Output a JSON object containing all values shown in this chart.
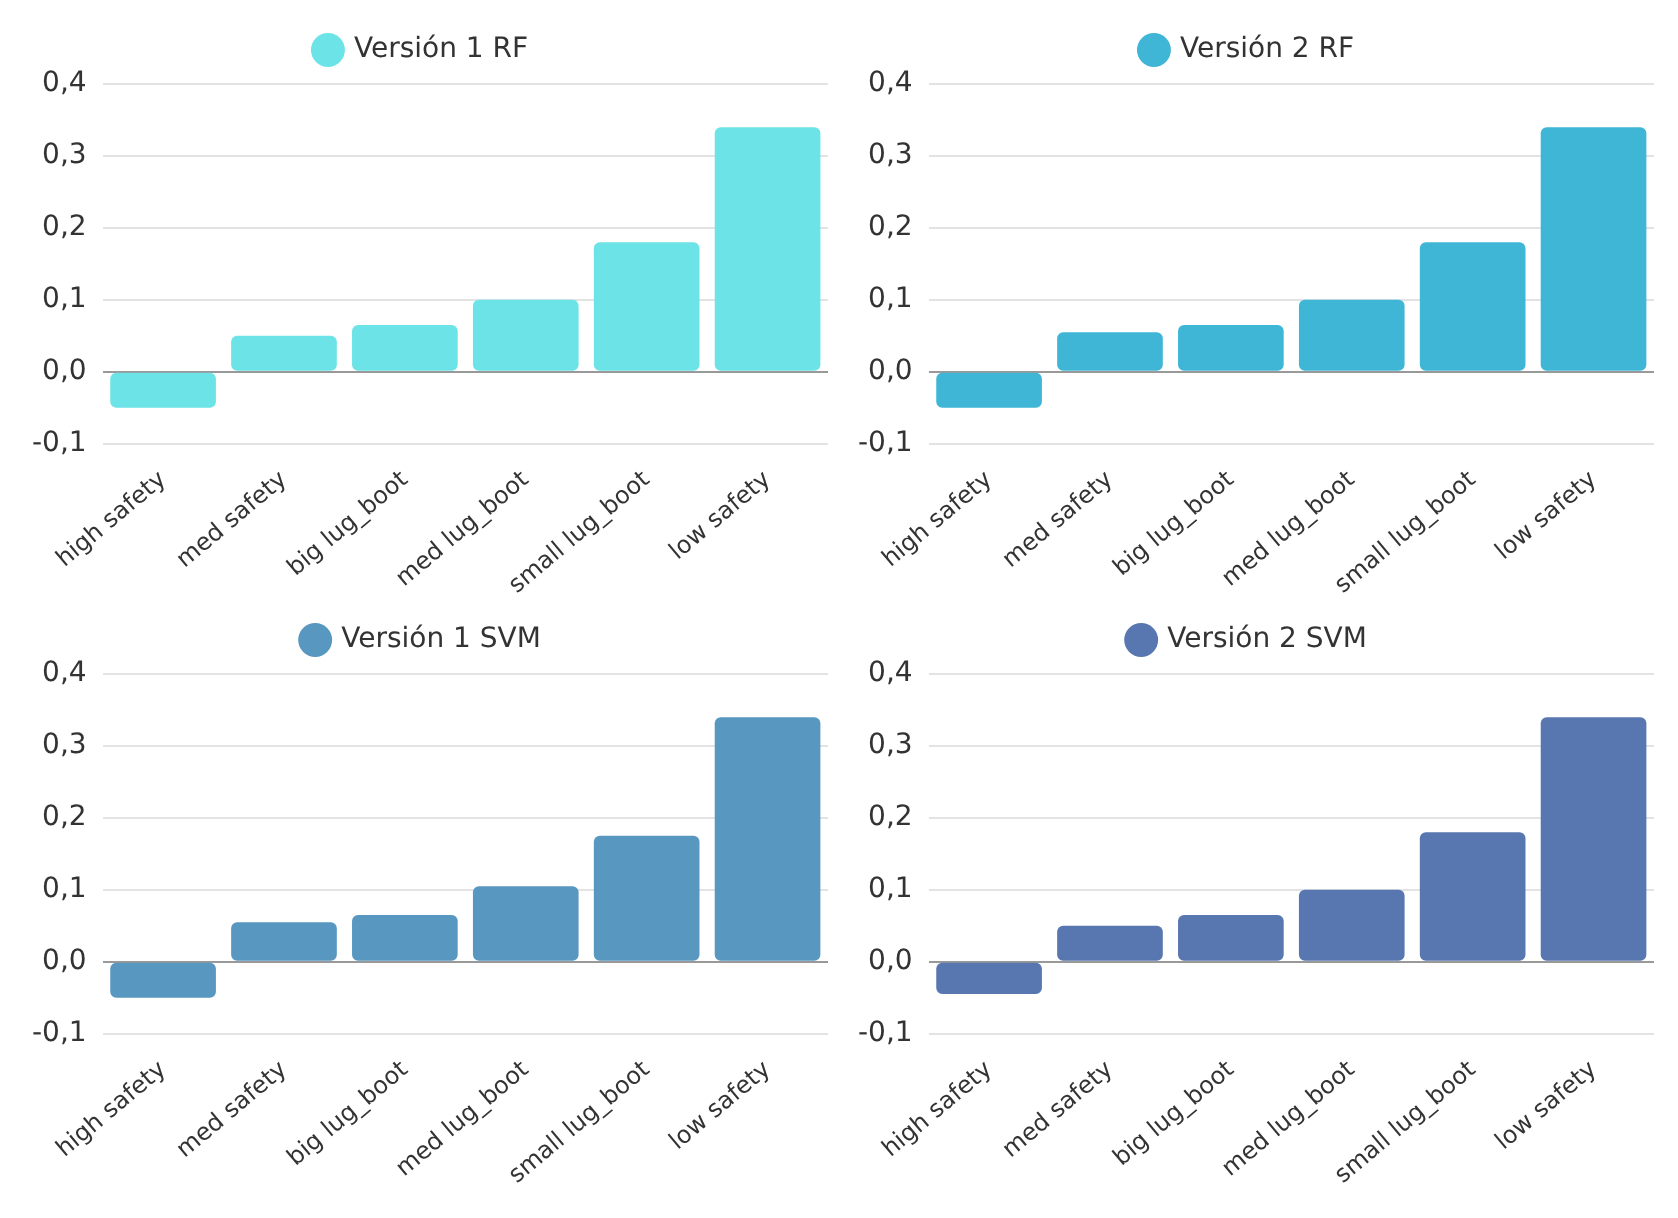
{
  "chart_data": [
    {
      "type": "bar",
      "categories": [
        "high safety",
        "med safety",
        "big lug_boot",
        "med lug_boot",
        "small lug_boot",
        "low safety"
      ],
      "series": [
        {
          "name": "Versión 1 RF",
          "color": "#6ce3e6",
          "values": [
            -0.05,
            0.05,
            0.065,
            0.1,
            0.18,
            0.34
          ]
        }
      ],
      "ylim": [
        -0.1,
        0.4
      ],
      "yticks": [
        {
          "value": -0.1,
          "label": "-0,1"
        },
        {
          "value": 0,
          "label": "0,0"
        },
        {
          "value": 0.1,
          "label": "0,1"
        },
        {
          "value": 0.2,
          "label": "0,2"
        },
        {
          "value": 0.3,
          "label": "0,3"
        },
        {
          "value": 0.4,
          "label": "0,4"
        }
      ],
      "grid": "y",
      "legend": "top",
      "marker": "circle"
    },
    {
      "type": "bar",
      "categories": [
        "high safety",
        "med safety",
        "big lug_boot",
        "med lug_boot",
        "small lug_boot",
        "low safety"
      ],
      "series": [
        {
          "name": "Versión 2 RF",
          "color": "#40b6d6",
          "values": [
            -0.05,
            0.055,
            0.065,
            0.1,
            0.18,
            0.34
          ]
        }
      ],
      "ylim": [
        -0.1,
        0.4
      ],
      "yticks": [
        {
          "value": -0.1,
          "label": "-0,1"
        },
        {
          "value": 0,
          "label": "0,0"
        },
        {
          "value": 0.1,
          "label": "0,1"
        },
        {
          "value": 0.2,
          "label": "0,2"
        },
        {
          "value": 0.3,
          "label": "0,3"
        },
        {
          "value": 0.4,
          "label": "0,4"
        }
      ],
      "grid": "y",
      "legend": "top",
      "marker": "circle"
    },
    {
      "type": "bar",
      "categories": [
        "high safety",
        "med safety",
        "big lug_boot",
        "med lug_boot",
        "small lug_boot",
        "low safety"
      ],
      "series": [
        {
          "name": "Versión 1 SVM",
          "color": "#5897bf",
          "values": [
            -0.05,
            0.055,
            0.065,
            0.105,
            0.175,
            0.34
          ]
        }
      ],
      "ylim": [
        -0.1,
        0.4
      ],
      "yticks": [
        {
          "value": -0.1,
          "label": "-0,1"
        },
        {
          "value": 0,
          "label": "0,0"
        },
        {
          "value": 0.1,
          "label": "0,1"
        },
        {
          "value": 0.2,
          "label": "0,2"
        },
        {
          "value": 0.3,
          "label": "0,3"
        },
        {
          "value": 0.4,
          "label": "0,4"
        }
      ],
      "grid": "y",
      "legend": "top",
      "marker": "circle"
    },
    {
      "type": "bar",
      "categories": [
        "high safety",
        "med safety",
        "big lug_boot",
        "med lug_boot",
        "small lug_boot",
        "low safety"
      ],
      "series": [
        {
          "name": "Versión 2 SVM",
          "color": "#5877b0",
          "values": [
            -0.045,
            0.05,
            0.065,
            0.1,
            0.18,
            0.34
          ]
        }
      ],
      "ylim": [
        -0.1,
        0.4
      ],
      "yticks": [
        {
          "value": -0.1,
          "label": "-0,1"
        },
        {
          "value": 0,
          "label": "0,0"
        },
        {
          "value": 0.1,
          "label": "0,1"
        },
        {
          "value": 0.2,
          "label": "0,2"
        },
        {
          "value": 0.3,
          "label": "0,3"
        },
        {
          "value": 0.4,
          "label": "0,4"
        }
      ],
      "grid": "y",
      "legend": "top",
      "marker": "circle"
    }
  ]
}
